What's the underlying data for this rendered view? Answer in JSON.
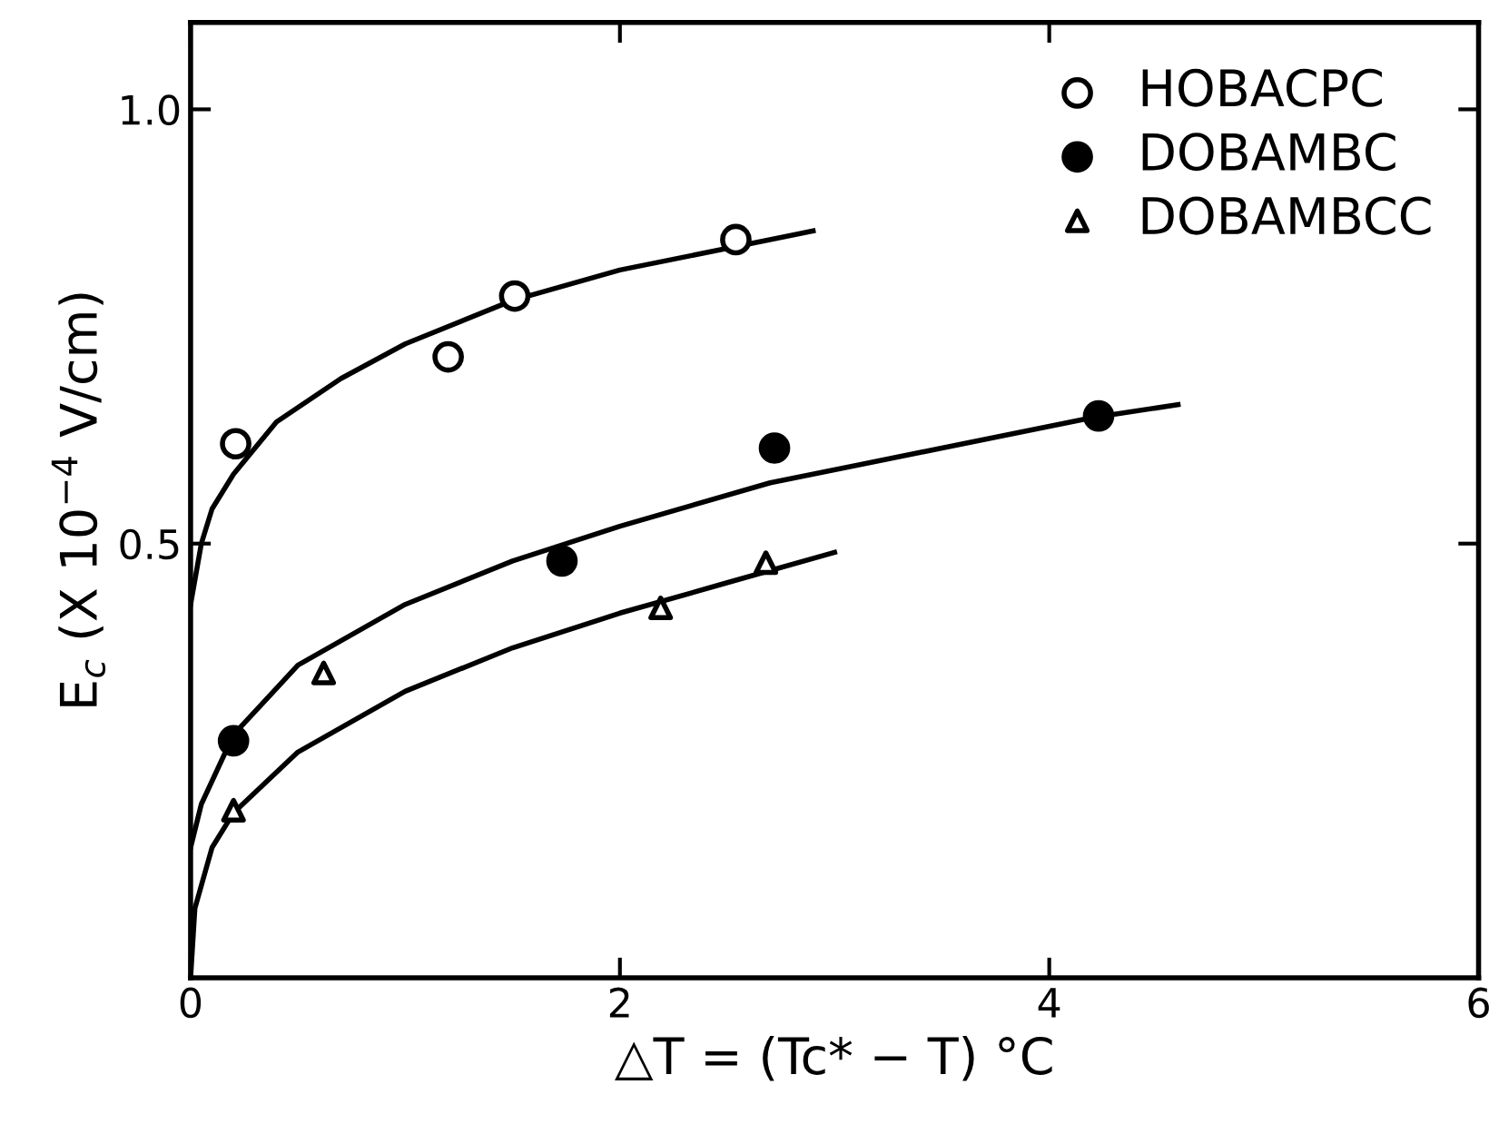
{
  "chart_data": {
    "type": "scatter",
    "xlabel": "△T = (Tc* − T) °C",
    "ylabel": "E$_{c}$ (X 10$^{−4}$ V/cm)",
    "xlim": [
      0,
      6
    ],
    "ylim": [
      0,
      1.1
    ],
    "xticks": [
      0,
      2,
      4,
      6
    ],
    "yticks": [
      {
        "value": 0.5,
        "label": "0.5"
      },
      {
        "value": 1.0,
        "label": "1.0"
      }
    ],
    "legend": "top right",
    "grid": false,
    "series": [
      {
        "name": "HOBACPC",
        "marker": "circle",
        "color": "#ffffff",
        "x": [
          0.21,
          1.2,
          1.51,
          2.54
        ],
        "values": [
          0.615,
          0.715,
          0.785,
          0.85
        ]
      },
      {
        "name": "DOBAMBC",
        "marker": "circle",
        "color": "#000000",
        "x": [
          0.2,
          1.73,
          2.72,
          4.23
        ],
        "values": [
          0.273,
          0.48,
          0.61,
          0.647
        ]
      },
      {
        "name": "DOBAMBCC",
        "marker": "triangle",
        "color": "#ffffff",
        "x": [
          0.2,
          0.62,
          2.19,
          2.68
        ],
        "values": [
          0.193,
          0.351,
          0.426,
          0.478
        ]
      },
      {
        "type": "line",
        "color": "#000000",
        "x": [
          0,
          0.05,
          0.1,
          0.2,
          0.4,
          0.7,
          1.0,
          1.5,
          2.0,
          2.5,
          2.9
        ],
        "values": [
          0.43,
          0.5,
          0.54,
          0.58,
          0.64,
          0.69,
          0.73,
          0.78,
          0.815,
          0.84,
          0.86
        ]
      },
      {
        "type": "line",
        "color": "#000000",
        "x": [
          0,
          0.05,
          0.2,
          0.5,
          1.0,
          1.5,
          2.0,
          2.7,
          3.5,
          4.2,
          4.6
        ],
        "values": [
          0.15,
          0.2,
          0.28,
          0.36,
          0.43,
          0.48,
          0.52,
          0.57,
          0.61,
          0.645,
          0.66
        ]
      },
      {
        "type": "line",
        "color": "#000000",
        "x": [
          0,
          0.02,
          0.1,
          0.2,
          0.5,
          1.0,
          1.5,
          2.0,
          2.5,
          3.0
        ],
        "values": [
          0.0,
          0.08,
          0.15,
          0.19,
          0.26,
          0.33,
          0.38,
          0.42,
          0.455,
          0.49
        ]
      }
    ]
  }
}
